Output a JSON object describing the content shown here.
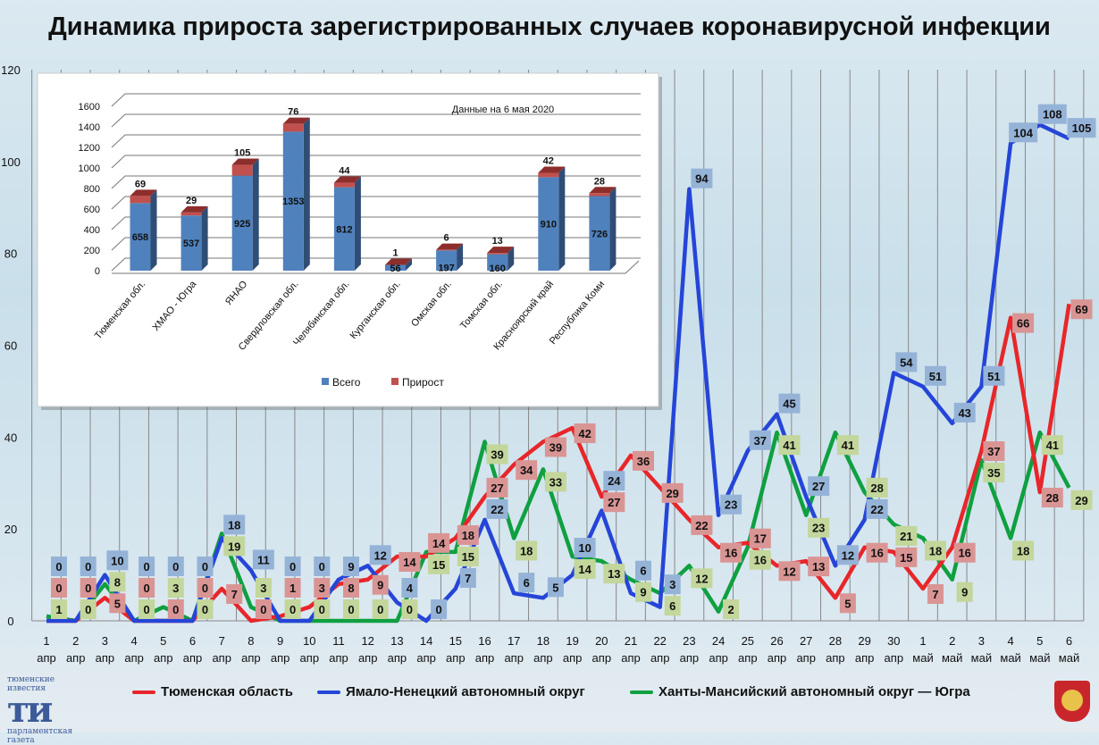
{
  "title": "Динамика прироста зарегистрированных случаев коронавирусной инфекции",
  "chart_data": [
    {
      "type": "line",
      "title": "Динамика прироста зарегистрированных случаев коронавирусной инфекции",
      "ylim": [
        0,
        120
      ],
      "yticks": [
        0,
        20,
        40,
        60,
        80,
        100,
        120
      ],
      "x": [
        "1",
        "2",
        "3",
        "4",
        "5",
        "6",
        "7",
        "8",
        "9",
        "10",
        "11",
        "12",
        "13",
        "14",
        "15",
        "16",
        "17",
        "18",
        "19",
        "20",
        "21",
        "22",
        "23",
        "24",
        "25",
        "26",
        "27",
        "28",
        "29",
        "30",
        "1",
        "2",
        "3",
        "4",
        "5",
        "6"
      ],
      "x_month": [
        "апр",
        "апр",
        "апр",
        "апр",
        "апр",
        "апр",
        "апр",
        "апр",
        "апр",
        "апр",
        "апр",
        "апр",
        "апр",
        "апр",
        "апр",
        "апр",
        "апр",
        "апр",
        "апр",
        "апр",
        "апр",
        "апр",
        "апр",
        "апр",
        "апр",
        "апр",
        "апр",
        "апр",
        "апр",
        "апр",
        "май",
        "май",
        "май",
        "май",
        "май",
        "май"
      ],
      "series": [
        {
          "name": "Тюменская область",
          "color": "#e8262a",
          "label_bg": "#d99594",
          "values": [
            0,
            0,
            5,
            0,
            0,
            0,
            7,
            0,
            1,
            3,
            8,
            9,
            14,
            14,
            18,
            27,
            34,
            39,
            42,
            27,
            36,
            29,
            22,
            16,
            17,
            12,
            13,
            5,
            16,
            15,
            7,
            16,
            37,
            66,
            28,
            69
          ]
        },
        {
          "name": "Ямало-Ненецкий автономный округ",
          "color": "#2545d8",
          "label_bg": "#95b3d7",
          "values": [
            0,
            0,
            10,
            0,
            0,
            0,
            18,
            11,
            0,
            0,
            9,
            12,
            4,
            0,
            7,
            22,
            6,
            5,
            10,
            24,
            6,
            3,
            94,
            23,
            37,
            45,
            27,
            12,
            22,
            54,
            51,
            43,
            51,
            104,
            108,
            105
          ]
        },
        {
          "name": "Ханты-Мансийский автономный округ — Югра",
          "color": "#0fa040",
          "label_bg": "#c3d69b",
          "values": [
            1,
            0,
            8,
            0,
            3,
            0,
            19,
            3,
            0,
            0,
            0,
            0,
            0,
            15,
            15,
            39,
            18,
            33,
            14,
            13,
            9,
            6,
            12,
            2,
            16,
            41,
            23,
            41,
            28,
            21,
            18,
            9,
            35,
            18,
            41,
            29
          ]
        }
      ],
      "legend": "bottom"
    },
    {
      "type": "bar",
      "stacked": true,
      "annotation": "Данные на 6 мая 2020",
      "ylim": [
        0,
        1600
      ],
      "yticks": [
        0,
        200,
        400,
        600,
        800,
        1000,
        1200,
        1400,
        1600
      ],
      "categories": [
        "Тюменская обл.",
        "ХМАО - Югра",
        "ЯНАО",
        "Свердловская обл.",
        "Челябинская обл.",
        "Курганская обл.",
        "Омская обл.",
        "Томская обл.",
        "Красноярский край",
        "Республика Коми"
      ],
      "series": [
        {
          "name": "Всего",
          "color": "#4f81bd",
          "values": [
            658,
            537,
            925,
            1353,
            812,
            56,
            197,
            160,
            910,
            726
          ]
        },
        {
          "name": "Прирост",
          "color": "#c0504d",
          "values": [
            69,
            29,
            105,
            76,
            44,
            1,
            6,
            13,
            42,
            28
          ]
        }
      ],
      "legend": "bottom"
    }
  ],
  "logo": {
    "top": "тюменские известия",
    "mark": "ти",
    "bottom": "парламентская газета"
  }
}
